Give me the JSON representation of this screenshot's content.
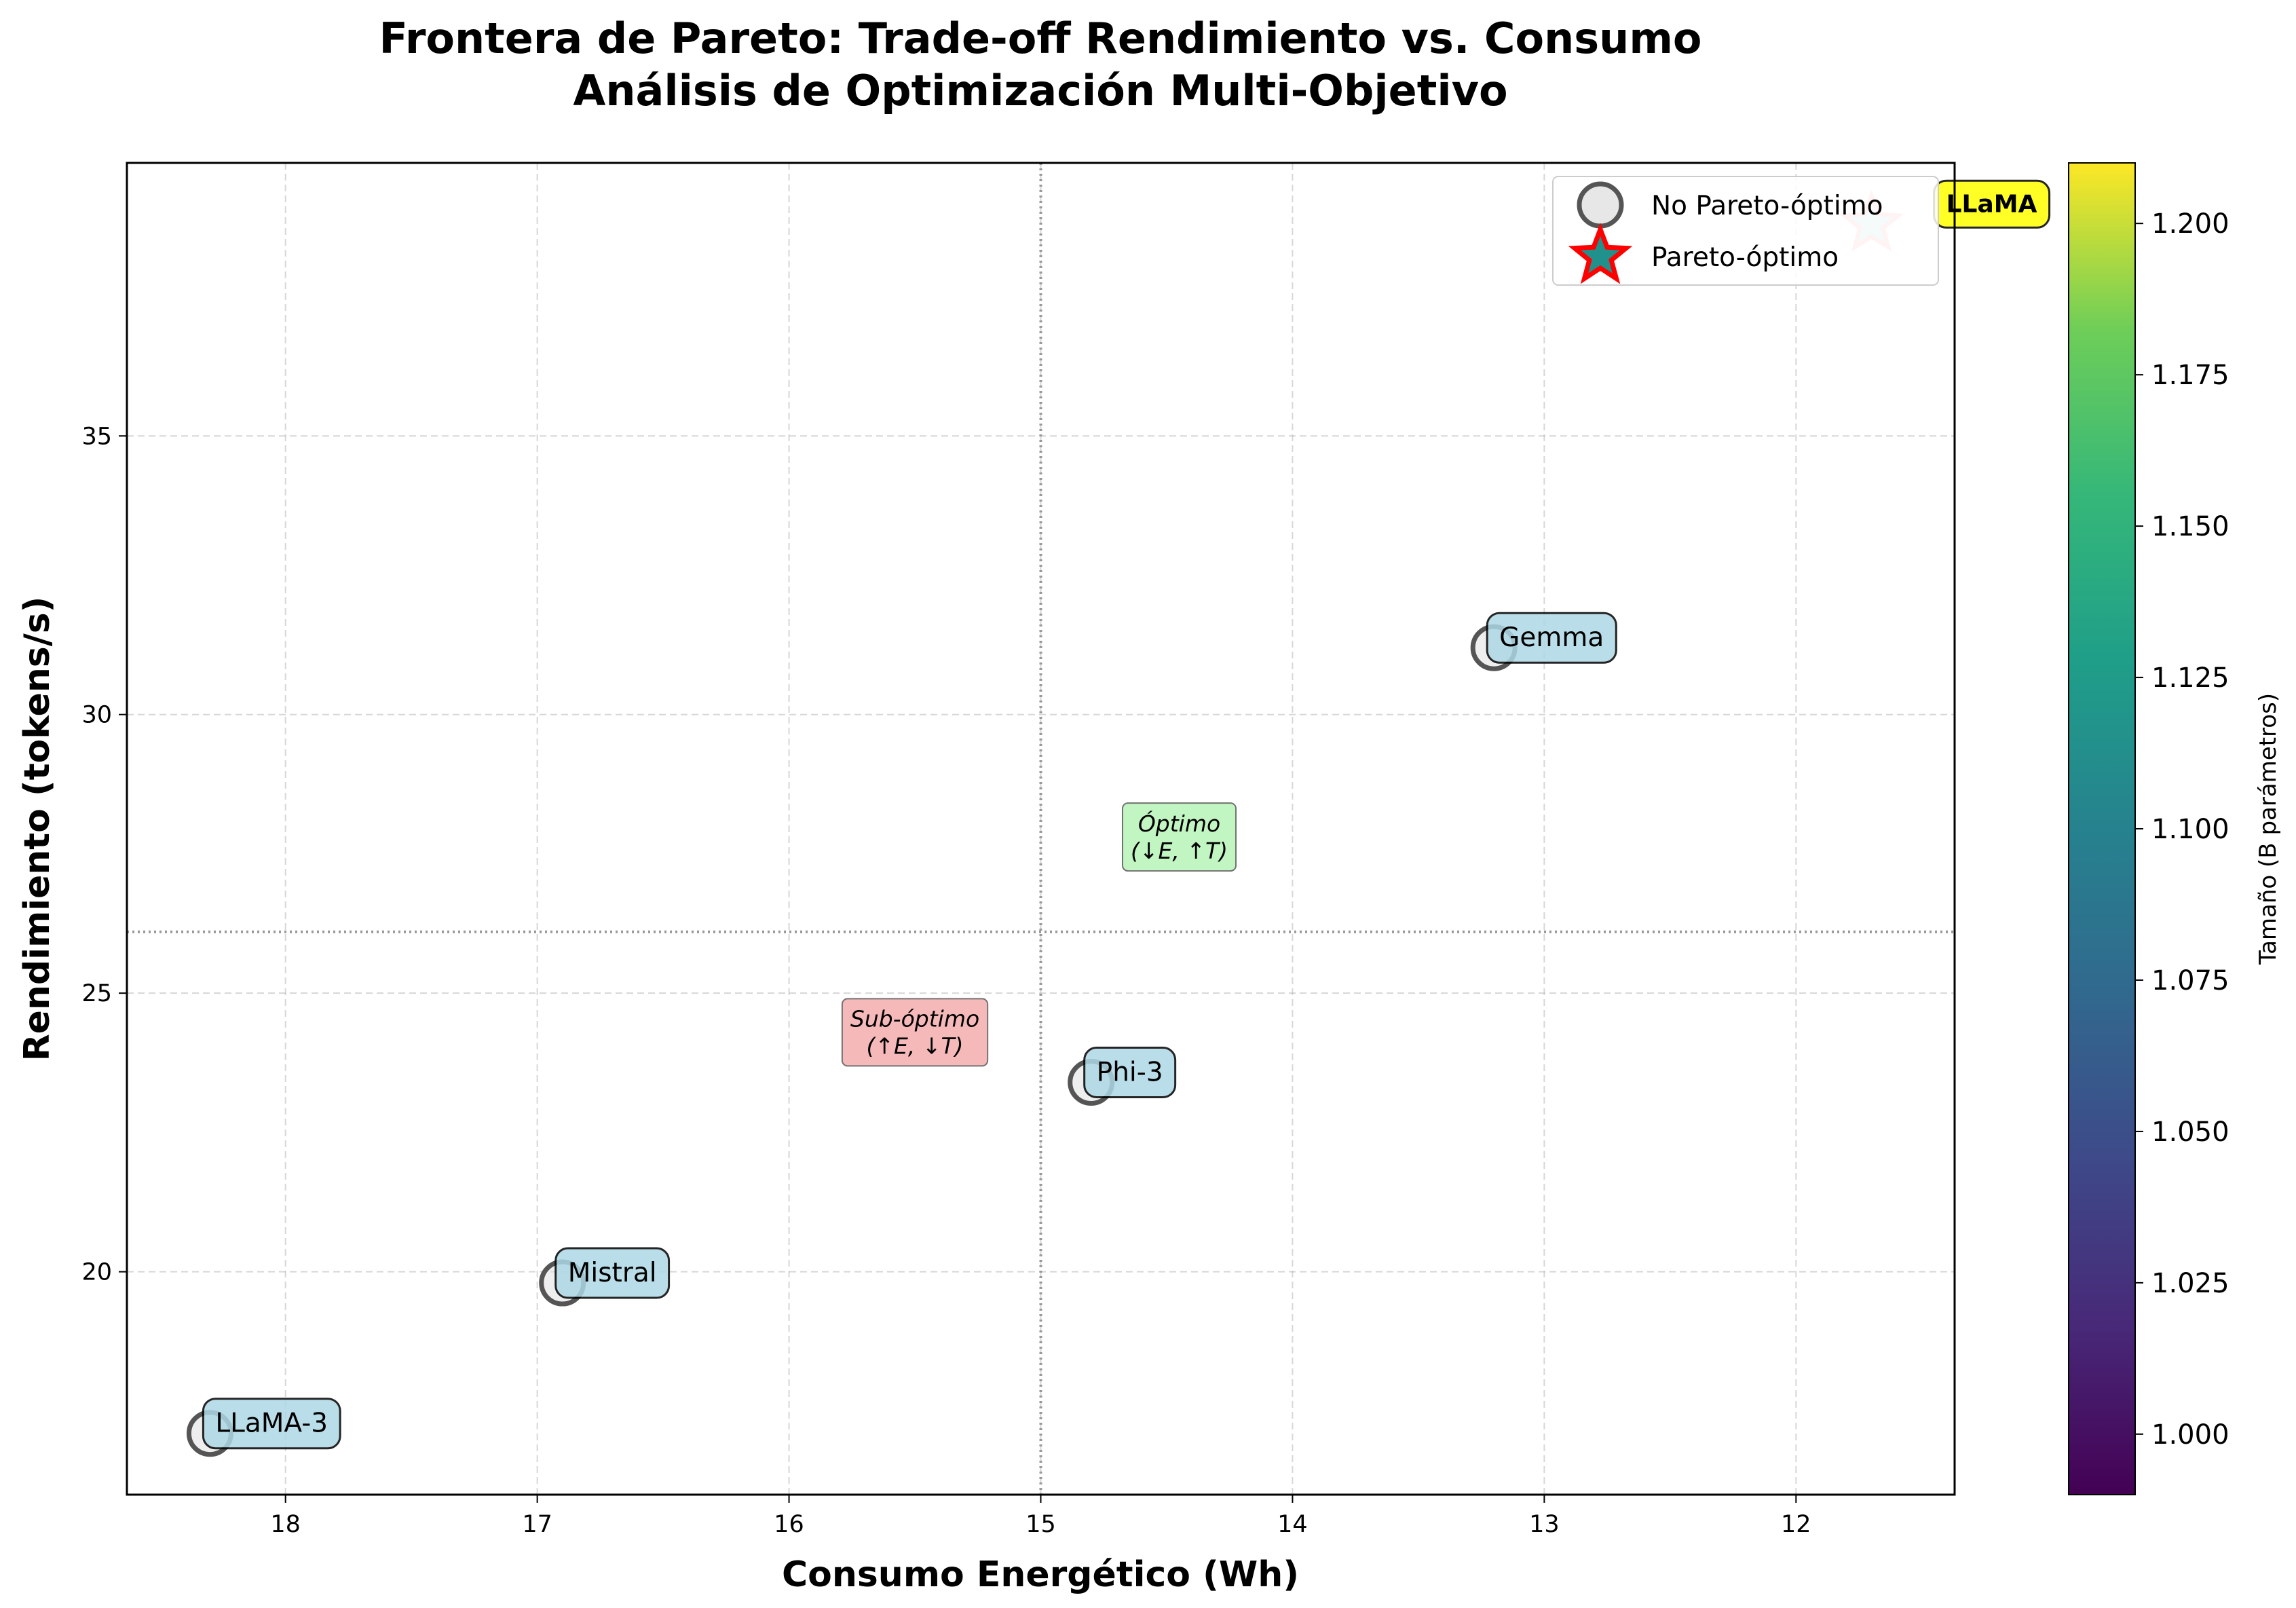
{
  "chart_data": {
    "type": "scatter",
    "title": "Frontera de Pareto: Trade-off Rendimiento vs. Consumo",
    "subtitle": "Análisis de Optimización Multi-Objetivo",
    "xlabel": "Consumo Energético (Wh)",
    "ylabel": "Rendimiento (tokens/s)",
    "x_inverted": true,
    "xlim": [
      18.63,
      11.37
    ],
    "ylim": [
      16.0,
      39.9
    ],
    "xticks": [
      18,
      17,
      16,
      15,
      14,
      13,
      12
    ],
    "xtick_labels": [
      "18",
      "17",
      "16",
      "15",
      "14",
      "13",
      "12"
    ],
    "yticks": [
      20,
      25,
      30,
      35
    ],
    "ytick_labels": [
      "20",
      "25",
      "30",
      "35"
    ],
    "grid": true,
    "reference_lines": {
      "x": 15.0,
      "y": 26.1
    },
    "series": [
      {
        "name": "No Pareto-óptimo",
        "points": [
          {
            "label": "LLaMA-3",
            "x": 18.3,
            "y": 17.1
          },
          {
            "label": "Mistral",
            "x": 16.9,
            "y": 19.8
          },
          {
            "label": "Phi-3",
            "x": 14.8,
            "y": 23.4
          },
          {
            "label": "Gemma",
            "x": 13.2,
            "y": 31.2
          }
        ]
      },
      {
        "name": "Pareto-óptimo",
        "points": [
          {
            "label": "LLaMA",
            "x": 11.7,
            "y": 38.8
          }
        ]
      }
    ],
    "region_labels": [
      {
        "line1": "Óptimo",
        "line2": "(↓E, ↑T)",
        "x": 14.45,
        "y": 27.9
      },
      {
        "line1": "Sub-óptimo",
        "line2": "(↑E, ↓T)",
        "x": 15.5,
        "y": 24.4
      }
    ],
    "legend": {
      "position": "top-right",
      "entries": [
        "No Pareto-óptimo",
        "Pareto-óptimo"
      ]
    },
    "colorbar": {
      "label": "Tamaño (B parámetros)",
      "min": 0.99,
      "max": 1.21,
      "ticks": [
        1.0,
        1.025,
        1.05,
        1.075,
        1.1,
        1.125,
        1.15,
        1.175,
        1.2
      ],
      "tick_labels": [
        "1.000",
        "1.025",
        "1.050",
        "1.075",
        "1.100",
        "1.125",
        "1.150",
        "1.175",
        "1.200"
      ],
      "colormap": "viridis"
    },
    "colors": {
      "label_box": "#add8e6",
      "pareto_label_box": "#ffff00",
      "optimo_box": "#90ee90",
      "suboptimo_box": "#f08080",
      "pareto_star_edge": "#ff0000",
      "pareto_star_fill": "#21918c",
      "circle_edge": "#555555"
    }
  }
}
